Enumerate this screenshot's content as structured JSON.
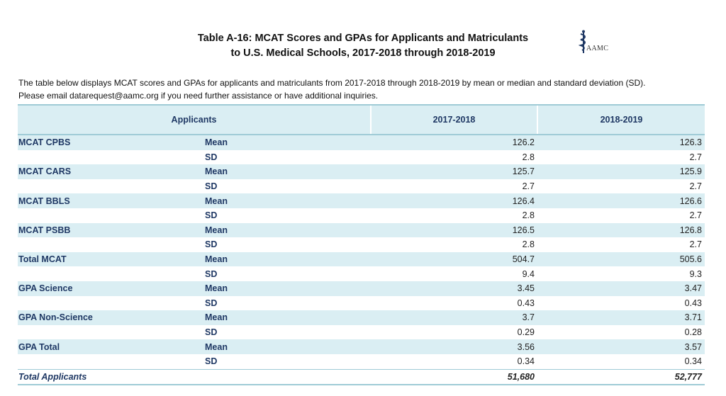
{
  "title": {
    "line1": "Table A-16: MCAT Scores and GPAs for Applicants and Matriculants",
    "line2": "to U.S. Medical Schools, 2017-2018 through 2018-2019"
  },
  "logo": {
    "text": "AAMC",
    "icon": "aamc-caduceus-icon"
  },
  "intro": {
    "line1": "The table below displays MCAT scores and GPAs for applicants and matriculants from 2017-2018 through 2018-2019 by mean or median and standard deviation (SD).",
    "line2": "Please email datarequest@aamc.org if you need further assistance or have additional inquiries."
  },
  "table": {
    "headers": [
      "Applicants",
      "2017-2018",
      "2018-2019"
    ],
    "rows": [
      {
        "metric": "MCAT CPBS",
        "stat": "Mean",
        "v1": "126.2",
        "v2": "126.3"
      },
      {
        "metric": "",
        "stat": "SD",
        "v1": "2.8",
        "v2": "2.7"
      },
      {
        "metric": "MCAT CARS",
        "stat": "Mean",
        "v1": "125.7",
        "v2": "125.9"
      },
      {
        "metric": "",
        "stat": "SD",
        "v1": "2.7",
        "v2": "2.7"
      },
      {
        "metric": "MCAT BBLS",
        "stat": "Mean",
        "v1": "126.4",
        "v2": "126.6"
      },
      {
        "metric": "",
        "stat": "SD",
        "v1": "2.8",
        "v2": "2.7"
      },
      {
        "metric": "MCAT PSBB",
        "stat": "Mean",
        "v1": "126.5",
        "v2": "126.8"
      },
      {
        "metric": "",
        "stat": "SD",
        "v1": "2.8",
        "v2": "2.7"
      },
      {
        "metric": "Total MCAT",
        "stat": "Mean",
        "v1": "504.7",
        "v2": "505.6"
      },
      {
        "metric": "",
        "stat": "SD",
        "v1": "9.4",
        "v2": "9.3"
      },
      {
        "metric": "GPA Science",
        "stat": "Mean",
        "v1": "3.45",
        "v2": "3.47"
      },
      {
        "metric": "",
        "stat": "SD",
        "v1": "0.43",
        "v2": "0.43"
      },
      {
        "metric": "GPA Non-Science",
        "stat": "Mean",
        "v1": "3.7",
        "v2": "3.71"
      },
      {
        "metric": "",
        "stat": "SD",
        "v1": "0.29",
        "v2": "0.28"
      },
      {
        "metric": "GPA Total",
        "stat": "Mean",
        "v1": "3.56",
        "v2": "3.57"
      },
      {
        "metric": "",
        "stat": "SD",
        "v1": "0.34",
        "v2": "0.34"
      }
    ],
    "total": {
      "label": "Total Applicants",
      "v1": "51,680",
      "v2": "52,777"
    }
  },
  "colors": {
    "header_bg": "#daeef3",
    "row_shade": "#daeef3",
    "label_text": "#1f3864",
    "border": "#9fcbd6"
  }
}
